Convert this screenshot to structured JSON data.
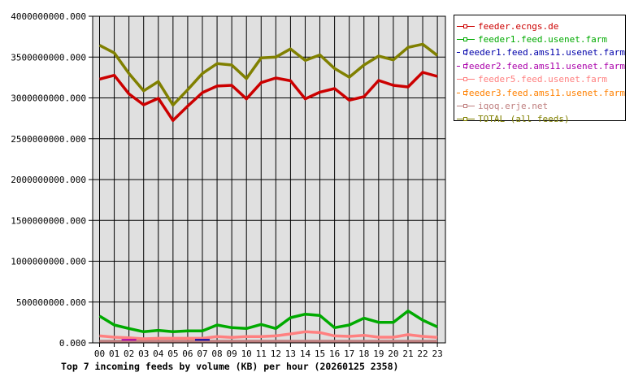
{
  "chart_data": {
    "type": "line",
    "title": "Top 7 incoming feeds by volume (KB) per hour (20260125 2358)",
    "xlabel": "",
    "ylabel": "",
    "ylim": [
      0,
      4000000000
    ],
    "yticks": [
      "0.000",
      "500000000.000",
      "1000000000.000",
      "1500000000.000",
      "2000000000.000",
      "2500000000.000",
      "3000000000.000",
      "3500000000.000",
      "4000000000.000"
    ],
    "grid": true,
    "legend_position": "right",
    "categories": [
      "00",
      "01",
      "02",
      "03",
      "04",
      "05",
      "06",
      "07",
      "08",
      "09",
      "10",
      "11",
      "12",
      "13",
      "14",
      "15",
      "16",
      "17",
      "18",
      "19",
      "20",
      "21",
      "22",
      "23"
    ],
    "series": [
      {
        "name": "feeder.ecngs.de",
        "color": "#cc0000",
        "values": [
          3230000000,
          3277000000,
          3050000000,
          2915000000,
          2995000000,
          2723000000,
          2900000000,
          3065000000,
          3145000000,
          3154000000,
          2988000000,
          3187000000,
          3244000000,
          3210000000,
          2988000000,
          3071000000,
          3114000000,
          2972000000,
          3015000000,
          3214000000,
          3154000000,
          3134000000,
          3313000000,
          3264000000
        ]
      },
      {
        "name": "feeder1.feed.usenet.farm",
        "color": "#00aa00",
        "values": [
          328000000,
          219000000,
          176000000,
          136000000,
          153000000,
          136000000,
          146000000,
          146000000,
          219000000,
          186000000,
          176000000,
          226000000,
          176000000,
          308000000,
          351000000,
          335000000,
          186000000,
          219000000,
          302000000,
          252000000,
          252000000,
          391000000,
          279000000,
          196000000
        ]
      },
      {
        "name": "feeder1.feed.ams11.usenet.farm",
        "color": "#0000aa",
        "values": [
          null,
          null,
          null,
          null,
          null,
          null,
          null,
          37000000,
          null,
          null,
          null,
          null,
          null,
          null,
          null,
          null,
          null,
          null,
          null,
          null,
          null,
          null,
          null,
          null
        ]
      },
      {
        "name": "feeder2.feed.ams11.usenet.farm",
        "color": "#aa00aa",
        "values": [
          null,
          null,
          37000000,
          null,
          null,
          null,
          null,
          null,
          null,
          null,
          null,
          null,
          null,
          null,
          null,
          null,
          null,
          null,
          null,
          null,
          null,
          null,
          null,
          null
        ]
      },
      {
        "name": "feeder5.feed.usenet.farm",
        "color": "#ff8080",
        "values": [
          86000000,
          70000000,
          63000000,
          50000000,
          56000000,
          56000000,
          56000000,
          56000000,
          77000000,
          67000000,
          77000000,
          77000000,
          86000000,
          109000000,
          136000000,
          126000000,
          86000000,
          80000000,
          93000000,
          70000000,
          70000000,
          100000000,
          80000000,
          67000000
        ]
      },
      {
        "name": "feeder3.feed.ams11.usenet.farm",
        "color": "#ff8000",
        "values": [
          null,
          null,
          null,
          null,
          null,
          null,
          null,
          null,
          null,
          null,
          null,
          null,
          null,
          null,
          null,
          null,
          null,
          null,
          null,
          null,
          null,
          null,
          null,
          null
        ]
      },
      {
        "name": "iqoq.erje.net",
        "color": "#c08080",
        "values": [
          17000000,
          17000000,
          17000000,
          17000000,
          17000000,
          17000000,
          17000000,
          17000000,
          17000000,
          17000000,
          17000000,
          17000000,
          17000000,
          17000000,
          17000000,
          17000000,
          17000000,
          17000000,
          17000000,
          17000000,
          17000000,
          17000000,
          17000000,
          17000000
        ]
      },
      {
        "name": "TOTAL (all feeds)",
        "color": "#808000",
        "values": [
          3645000000,
          3550000000,
          3300000000,
          3087000000,
          3200000000,
          2912000000,
          3100000000,
          3300000000,
          3420000000,
          3403000000,
          3237000000,
          3490000000,
          3500000000,
          3600000000,
          3460000000,
          3526000000,
          3360000000,
          3254000000,
          3403000000,
          3512000000,
          3466000000,
          3619000000,
          3658000000,
          3519000000
        ]
      }
    ]
  }
}
